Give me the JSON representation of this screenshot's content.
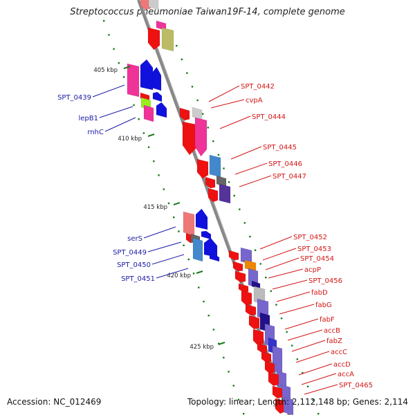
{
  "header": {
    "title": "Streptococcus pneumoniae Taiwan19F-14, complete genome"
  },
  "footer": {
    "accession": "Accession: NC_012469",
    "summary": "Topology: linear; Length: 2,112,148 bp; Genes: 2,114"
  },
  "colors": {
    "axis": "#888888",
    "ticks": "#1a7a1a",
    "left_labels": "#1a1aa6",
    "right_labels": "#d41414",
    "red": "#ee1111",
    "pink": "#ee3399",
    "salmon": "#ee7777",
    "blue": "#1111dd",
    "steel": "#4488cc",
    "violet": "#7766cc",
    "navy": "#221188",
    "grey": "#666666",
    "light_grey": "#bbbbbb",
    "lime": "#99ee22",
    "olive": "#bbbb66",
    "orange": "#ee8800"
  },
  "scale_labels": [
    "405 kbp",
    "410 kbp",
    "415 kbp",
    "420 kbp",
    "425 kbp"
  ],
  "left_genes": [
    "SPT_0439",
    "lepB1",
    "rnhC",
    "serS",
    "SPT_0449",
    "SPT_0450",
    "SPT_0451"
  ],
  "right_genes": [
    "SPT_0442",
    "cvpA",
    "SPT_0444",
    "SPT_0445",
    "SPT_0446",
    "SPT_0447",
    "SPT_0452",
    "SPT_0453",
    "SPT_0454",
    "acpP",
    "SPT_0456",
    "fabD",
    "fabG",
    "fabF",
    "accB",
    "fabZ",
    "accC",
    "accD",
    "accA",
    "SPT_0465"
  ]
}
